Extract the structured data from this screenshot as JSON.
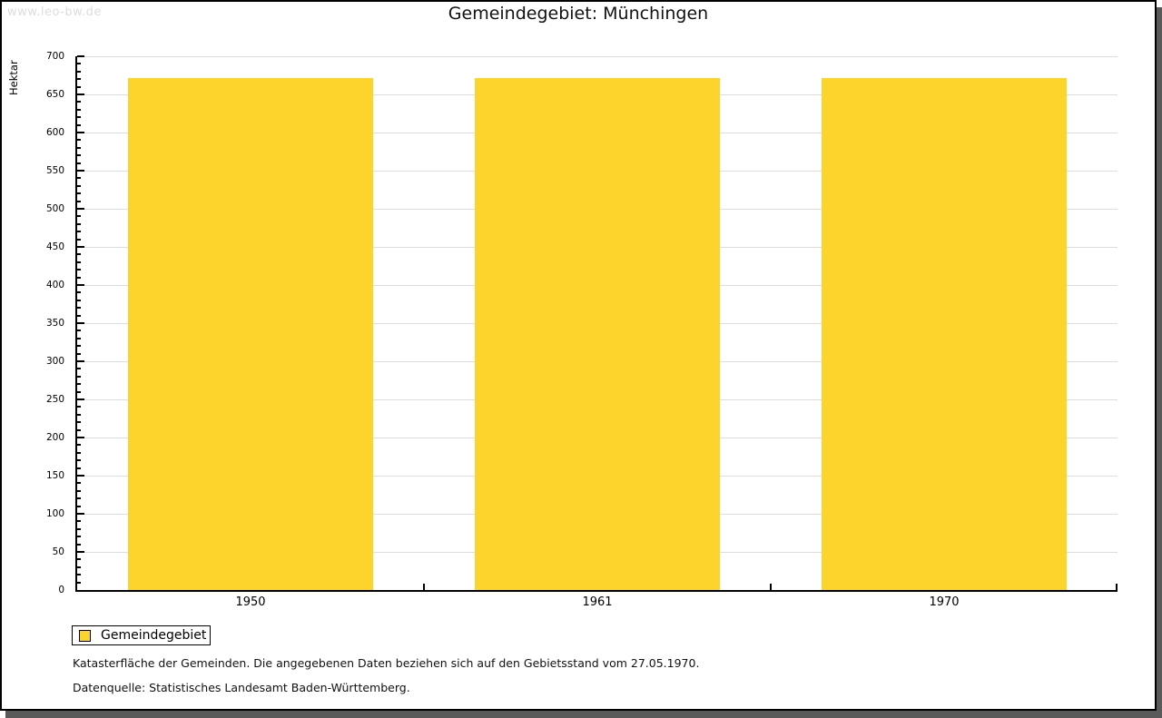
{
  "page": {
    "watermark": "www.leo-bw.de",
    "title": "Gemeindegebiet: Münchingen",
    "footnotes": [
      "Katasterfläche der Gemeinden. Die angegebenen Daten beziehen sich auf den Gebietsstand vom 27.05.1970.",
      "Datenquelle: Statistisches Landesamt Baden-Württemberg."
    ]
  },
  "legend": {
    "label": "Gemeindegebiet",
    "swatch_color": "#FDD42B",
    "swatch_border_color": "#000000"
  },
  "chart_data": {
    "type": "bar",
    "title": "Gemeindegebiet: Münchingen",
    "categories": [
      "1950",
      "1961",
      "1970"
    ],
    "series": [
      {
        "name": "Gemeindegebiet",
        "values": [
          672,
          672,
          672
        ]
      }
    ],
    "xlabel": "",
    "ylabel": "Hektar",
    "ylim": [
      0,
      700
    ],
    "ytick_major": 50,
    "ytick_minor": 10,
    "grid": true,
    "grid_color": "#DDDDDD",
    "bar_color": "#FDD42B",
    "legend_position": "bottom-left"
  }
}
